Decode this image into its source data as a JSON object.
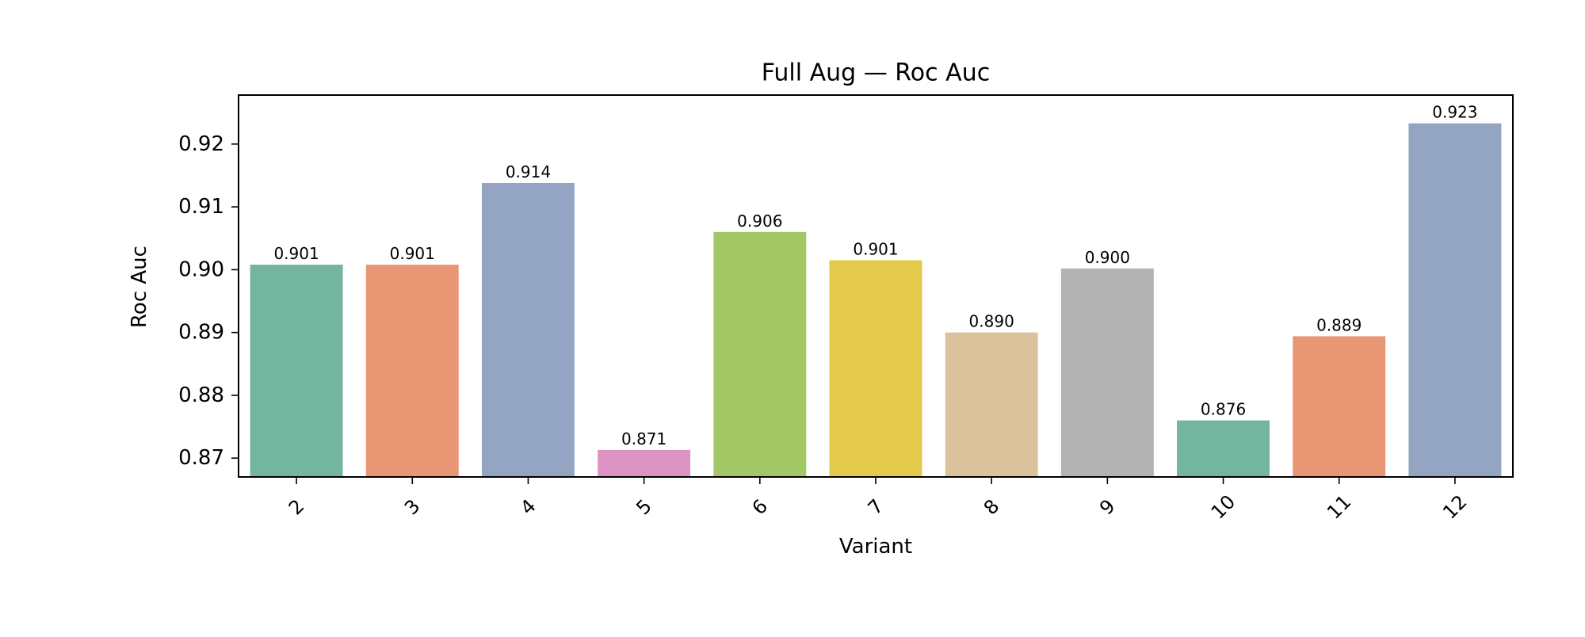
{
  "chart_data": {
    "type": "bar",
    "title": "Full Aug — Roc Auc",
    "xlabel": "Variant",
    "ylabel": "Roc Auc",
    "categories": [
      "2",
      "3",
      "4",
      "5",
      "6",
      "7",
      "8",
      "9",
      "10",
      "11",
      "12"
    ],
    "values": [
      0.9008,
      0.9008,
      0.9138,
      0.8713,
      0.906,
      0.9015,
      0.89,
      0.9002,
      0.876,
      0.8894,
      0.9233
    ],
    "value_labels": [
      "0.901",
      "0.901",
      "0.914",
      "0.871",
      "0.906",
      "0.901",
      "0.890",
      "0.900",
      "0.876",
      "0.889",
      "0.923"
    ],
    "colors": [
      "#73b59f",
      "#e89673",
      "#94a5c3",
      "#dc95c2",
      "#a2c764",
      "#e3ca4a",
      "#dbc29c",
      "#b3b3b3",
      "#73b59f",
      "#e89673",
      "#94a5c3"
    ],
    "ylim": [
      0.867,
      0.9278
    ],
    "yticks": [
      0.87,
      0.88,
      0.89,
      0.9,
      0.91,
      0.92
    ],
    "ytick_labels": [
      "0.87",
      "0.88",
      "0.89",
      "0.90",
      "0.91",
      "0.92"
    ],
    "grid": false,
    "legend": false
  }
}
